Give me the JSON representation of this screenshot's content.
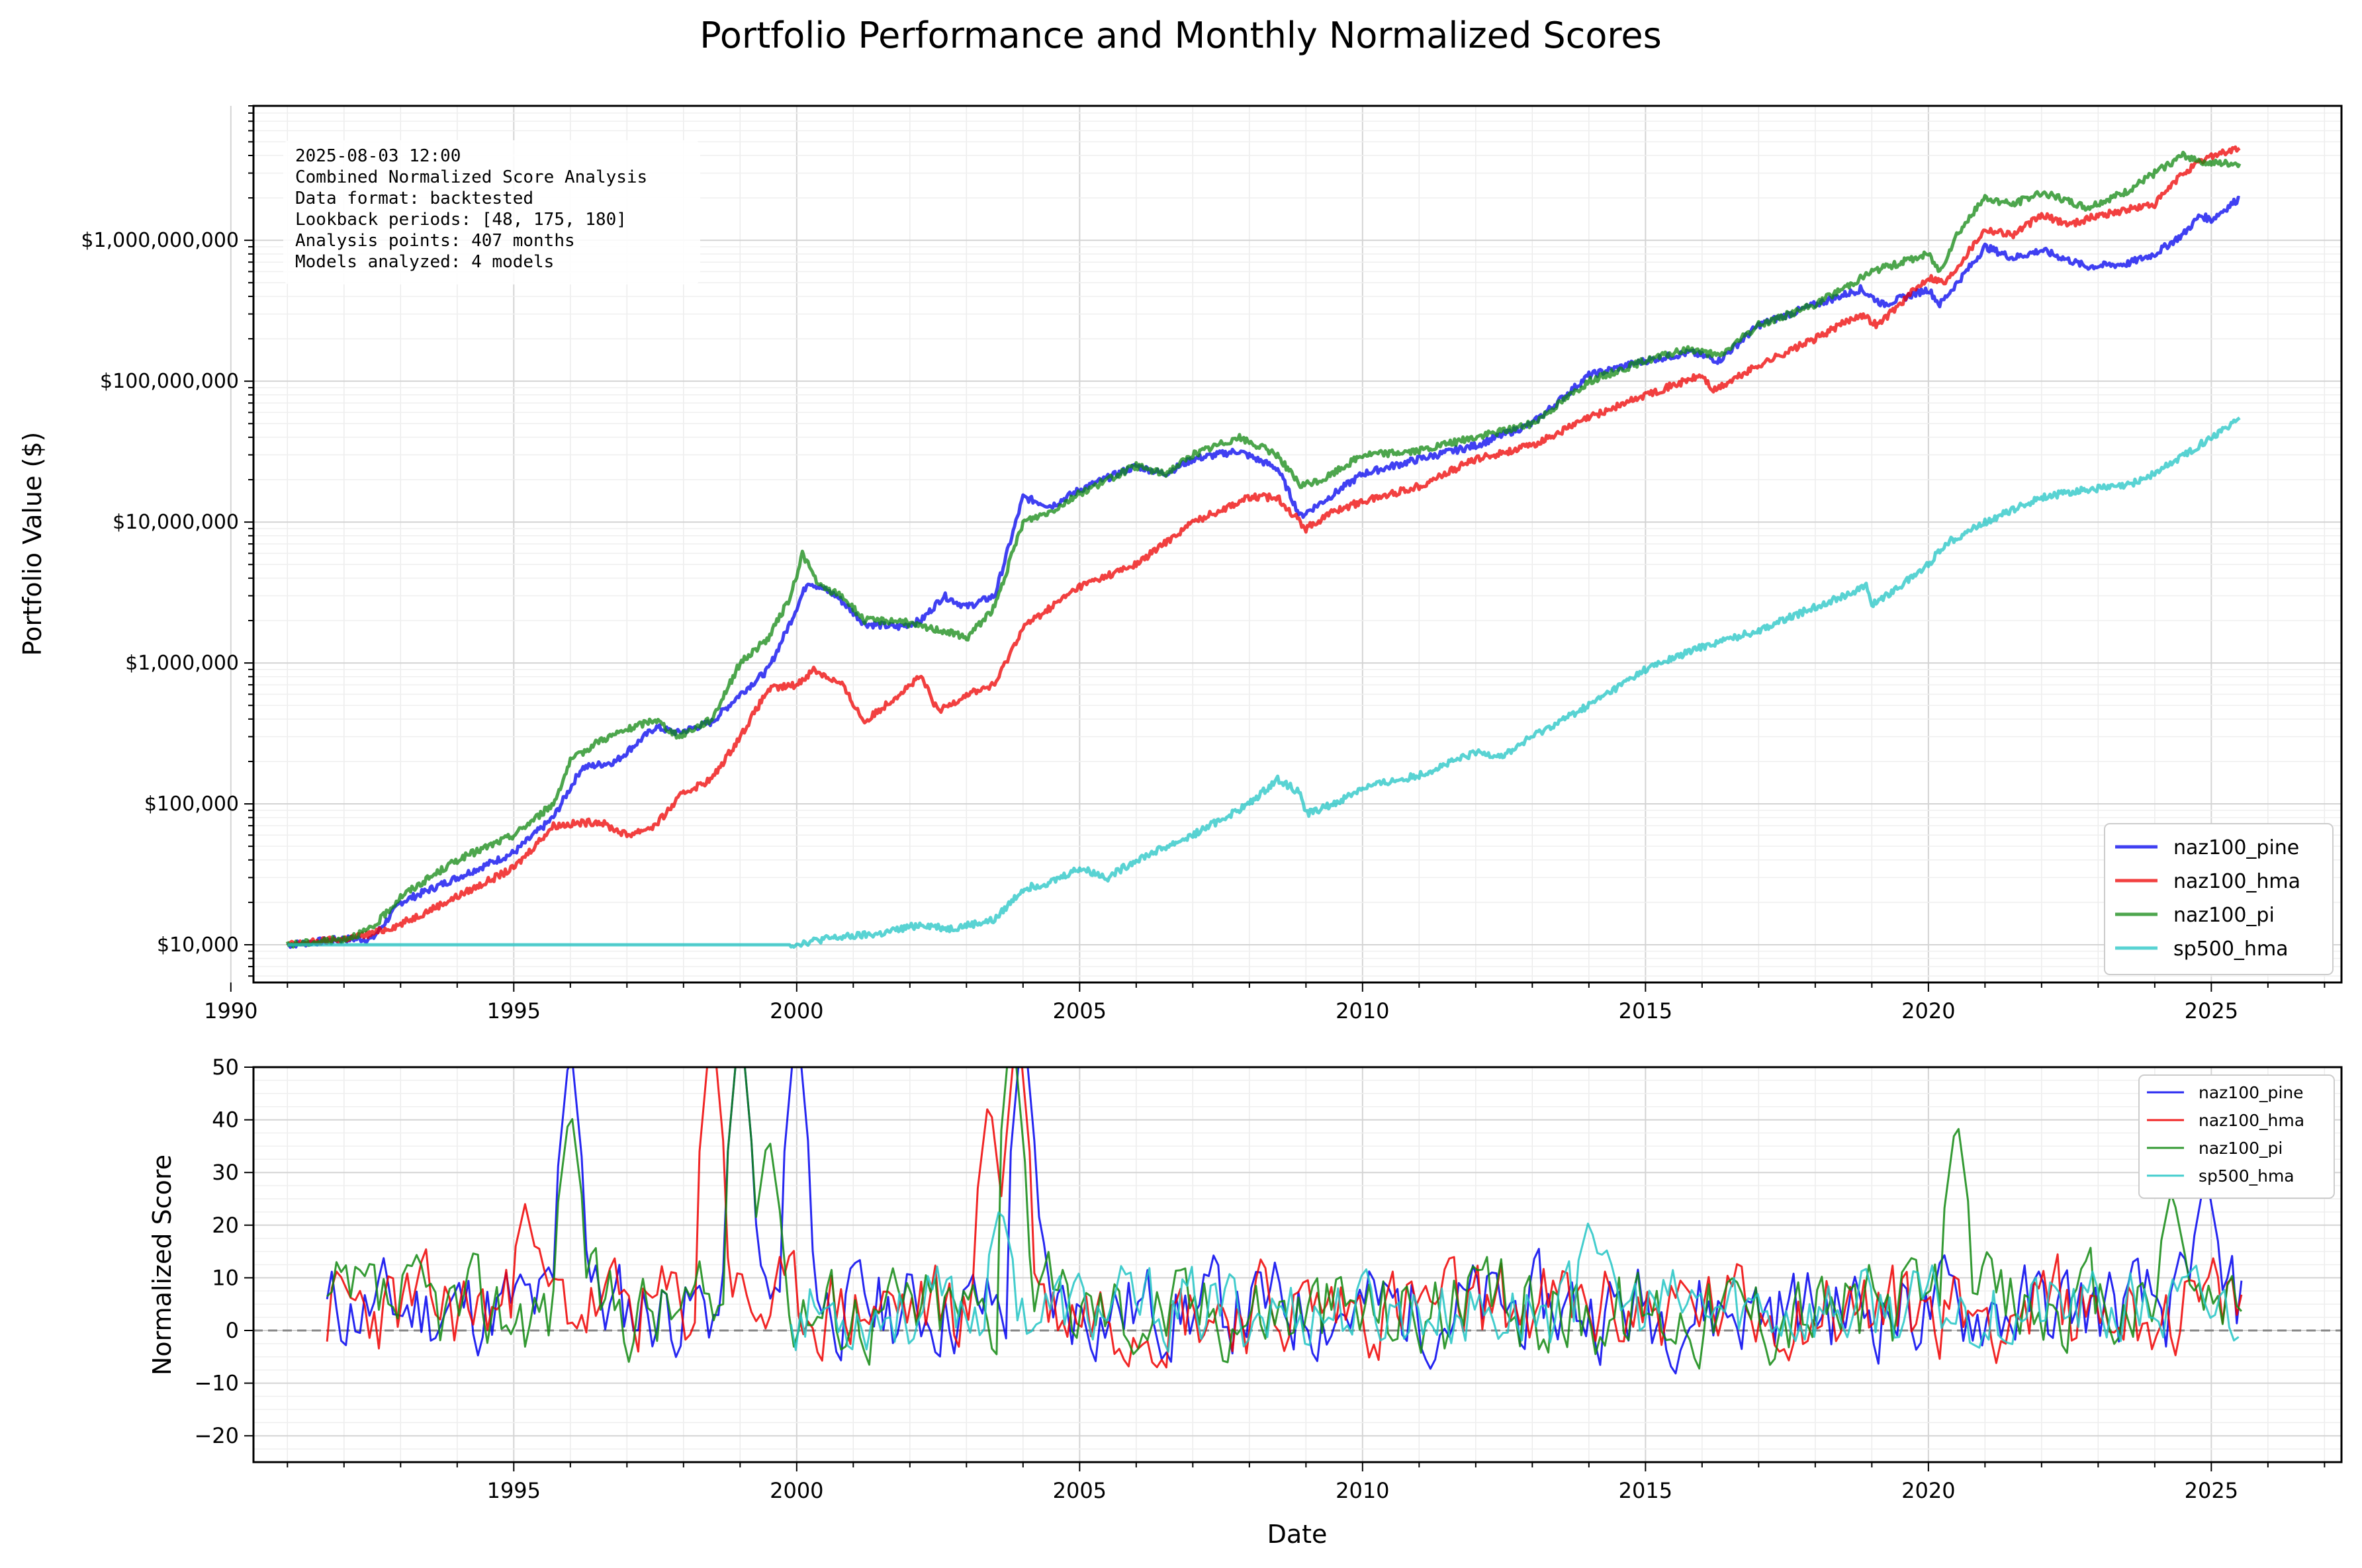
{
  "figure": {
    "title": "Portfolio Performance and Monthly Normalized Scores"
  },
  "info_box": {
    "lines": [
      "2025-08-03 12:00",
      "Combined Normalized Score Analysis",
      "Data format: backtested",
      "Lookback periods: [48, 175, 180]",
      "Analysis points: 407 months",
      "Models analyzed: 4 models"
    ]
  },
  "chart_data": [
    {
      "type": "line",
      "ylabel": "Portfolio Value ($)",
      "xlabel": "",
      "yscale": "log",
      "xlim": [
        1990.4,
        2027.3
      ],
      "ylim": [
        5400,
        9000000000
      ],
      "x_ticks": [
        1990,
        1995,
        2000,
        2005,
        2010,
        2015,
        2020,
        2025
      ],
      "y_ticks": [
        {
          "value": 10000,
          "label": "$10,000"
        },
        {
          "value": 100000,
          "label": "$100,000"
        },
        {
          "value": 1000000,
          "label": "$1,000,000"
        },
        {
          "value": 10000000,
          "label": "$10,000,000"
        },
        {
          "value": 100000000,
          "label": "$100,000,000"
        },
        {
          "value": 1000000000,
          "label": "$1,000,000,000"
        }
      ],
      "grid": true,
      "legend_position": "bottom-right",
      "series": [
        {
          "name": "naz100_pine",
          "color": "#0000ee",
          "points": [
            [
              1991.0,
              10000
            ],
            [
              1992.0,
              11000
            ],
            [
              1992.5,
              11000
            ],
            [
              1993.0,
              20000
            ],
            [
              1994.0,
              30000
            ],
            [
              1995.0,
              45000
            ],
            [
              1995.7,
              80000
            ],
            [
              1996.2,
              180000
            ],
            [
              1996.8,
              200000
            ],
            [
              1997.5,
              350000
            ],
            [
              1997.9,
              320000
            ],
            [
              1998.5,
              380000
            ],
            [
              1999.0,
              600000
            ],
            [
              1999.5,
              900000
            ],
            [
              1999.9,
              2000000
            ],
            [
              2000.2,
              3800000
            ],
            [
              2000.7,
              3000000
            ],
            [
              2001.2,
              1900000
            ],
            [
              2001.8,
              1800000
            ],
            [
              2002.2,
              2000000
            ],
            [
              2002.6,
              3000000
            ],
            [
              2003.0,
              2500000
            ],
            [
              2003.5,
              3000000
            ],
            [
              2004.0,
              15000000
            ],
            [
              2004.5,
              13000000
            ],
            [
              2005.0,
              17000000
            ],
            [
              2006.0,
              25000000
            ],
            [
              2006.5,
              22000000
            ],
            [
              2007.0,
              28000000
            ],
            [
              2007.8,
              32000000
            ],
            [
              2008.5,
              24000000
            ],
            [
              2008.9,
              11000000
            ],
            [
              2009.3,
              14000000
            ],
            [
              2010.0,
              22000000
            ],
            [
              2011.0,
              28000000
            ],
            [
              2012.0,
              35000000
            ],
            [
              2013.0,
              50000000
            ],
            [
              2014.0,
              110000000
            ],
            [
              2015.0,
              140000000
            ],
            [
              2015.8,
              160000000
            ],
            [
              2016.3,
              140000000
            ],
            [
              2017.0,
              250000000
            ],
            [
              2018.0,
              350000000
            ],
            [
              2018.8,
              450000000
            ],
            [
              2019.2,
              350000000
            ],
            [
              2020.0,
              450000000
            ],
            [
              2020.2,
              350000000
            ],
            [
              2020.8,
              700000000
            ],
            [
              2021.0,
              900000000
            ],
            [
              2021.5,
              750000000
            ],
            [
              2022.0,
              850000000
            ],
            [
              2022.8,
              650000000
            ],
            [
              2023.5,
              680000000
            ],
            [
              2024.0,
              800000000
            ],
            [
              2024.5,
              1100000000
            ],
            [
              2024.8,
              1500000000
            ],
            [
              2025.0,
              1400000000
            ],
            [
              2025.5,
              2000000000
            ]
          ]
        },
        {
          "name": "naz100_hma",
          "color": "#ee0000",
          "points": [
            [
              1991.0,
              10000
            ],
            [
              1992.0,
              11000
            ],
            [
              1992.5,
              12000
            ],
            [
              1993.0,
              14000
            ],
            [
              1994.0,
              22000
            ],
            [
              1995.0,
              35000
            ],
            [
              1995.7,
              70000
            ],
            [
              1996.5,
              75000
            ],
            [
              1997.0,
              60000
            ],
            [
              1997.5,
              70000
            ],
            [
              1998.0,
              120000
            ],
            [
              1998.5,
              150000
            ],
            [
              1999.0,
              300000
            ],
            [
              1999.5,
              650000
            ],
            [
              2000.0,
              700000
            ],
            [
              2000.3,
              900000
            ],
            [
              2000.8,
              700000
            ],
            [
              2001.2,
              380000
            ],
            [
              2001.8,
              600000
            ],
            [
              2002.2,
              800000
            ],
            [
              2002.5,
              450000
            ],
            [
              2003.0,
              600000
            ],
            [
              2003.5,
              700000
            ],
            [
              2004.0,
              1800000
            ],
            [
              2004.5,
              2500000
            ],
            [
              2005.0,
              3500000
            ],
            [
              2006.0,
              5000000
            ],
            [
              2007.0,
              10000000
            ],
            [
              2008.0,
              15000000
            ],
            [
              2008.5,
              15000000
            ],
            [
              2009.0,
              9000000
            ],
            [
              2009.5,
              12000000
            ],
            [
              2010.0,
              14000000
            ],
            [
              2011.0,
              18000000
            ],
            [
              2012.0,
              28000000
            ],
            [
              2013.0,
              35000000
            ],
            [
              2014.0,
              55000000
            ],
            [
              2015.0,
              80000000
            ],
            [
              2016.0,
              110000000
            ],
            [
              2016.2,
              85000000
            ],
            [
              2017.0,
              130000000
            ],
            [
              2018.0,
              200000000
            ],
            [
              2018.8,
              300000000
            ],
            [
              2019.1,
              250000000
            ],
            [
              2020.0,
              550000000
            ],
            [
              2020.3,
              500000000
            ],
            [
              2021.0,
              1200000000
            ],
            [
              2021.5,
              1100000000
            ],
            [
              2022.0,
              1500000000
            ],
            [
              2022.5,
              1300000000
            ],
            [
              2023.0,
              1500000000
            ],
            [
              2024.0,
              1800000000
            ],
            [
              2024.5,
              3000000000
            ],
            [
              2025.0,
              4000000000
            ],
            [
              2025.5,
              4500000000
            ]
          ]
        },
        {
          "name": "naz100_pi",
          "color": "#118811",
          "points": [
            [
              1991.0,
              10000
            ],
            [
              1992.0,
              11000
            ],
            [
              1992.5,
              13000
            ],
            [
              1993.0,
              22000
            ],
            [
              1994.0,
              40000
            ],
            [
              1995.0,
              60000
            ],
            [
              1995.7,
              100000
            ],
            [
              1996.0,
              200000
            ],
            [
              1996.5,
              280000
            ],
            [
              1997.5,
              400000
            ],
            [
              1997.9,
              300000
            ],
            [
              1998.5,
              400000
            ],
            [
              1999.0,
              1000000
            ],
            [
              1999.5,
              1500000
            ],
            [
              1999.9,
              3000000
            ],
            [
              2000.1,
              6000000
            ],
            [
              2000.4,
              3500000
            ],
            [
              2000.8,
              3000000
            ],
            [
              2001.2,
              2000000
            ],
            [
              2001.8,
              2000000
            ],
            [
              2002.2,
              1800000
            ],
            [
              2002.6,
              1700000
            ],
            [
              2003.0,
              1500000
            ],
            [
              2003.5,
              2500000
            ],
            [
              2004.0,
              10000000
            ],
            [
              2004.5,
              12000000
            ],
            [
              2005.0,
              16000000
            ],
            [
              2006.0,
              25000000
            ],
            [
              2006.5,
              22000000
            ],
            [
              2007.0,
              30000000
            ],
            [
              2007.8,
              40000000
            ],
            [
              2008.5,
              30000000
            ],
            [
              2008.9,
              18000000
            ],
            [
              2009.3,
              20000000
            ],
            [
              2010.0,
              30000000
            ],
            [
              2011.0,
              32000000
            ],
            [
              2012.0,
              40000000
            ],
            [
              2013.0,
              50000000
            ],
            [
              2014.0,
              100000000
            ],
            [
              2015.0,
              140000000
            ],
            [
              2015.8,
              170000000
            ],
            [
              2016.3,
              150000000
            ],
            [
              2017.0,
              250000000
            ],
            [
              2018.0,
              350000000
            ],
            [
              2019.0,
              600000000
            ],
            [
              2020.0,
              800000000
            ],
            [
              2020.2,
              600000000
            ],
            [
              2020.5,
              1100000000
            ],
            [
              2021.0,
              2000000000
            ],
            [
              2021.5,
              1800000000
            ],
            [
              2022.0,
              2200000000
            ],
            [
              2022.8,
              1700000000
            ],
            [
              2023.5,
              2200000000
            ],
            [
              2024.0,
              3000000000
            ],
            [
              2024.5,
              4000000000
            ],
            [
              2025.0,
              3500000000
            ],
            [
              2025.5,
              3500000000
            ]
          ]
        },
        {
          "name": "sp500_hma",
          "color": "#22c4c4",
          "points": [
            [
              1991.0,
              10000
            ],
            [
              1999.9,
              10000
            ],
            [
              2000.5,
              11000
            ],
            [
              2001.5,
              12000
            ],
            [
              2002.2,
              14000
            ],
            [
              2002.7,
              13000
            ],
            [
              2003.5,
              15000
            ],
            [
              2004.0,
              25000
            ],
            [
              2004.5,
              28000
            ],
            [
              2005.0,
              35000
            ],
            [
              2005.5,
              30000
            ],
            [
              2006.0,
              40000
            ],
            [
              2007.0,
              60000
            ],
            [
              2008.0,
              100000
            ],
            [
              2008.5,
              150000
            ],
            [
              2008.9,
              120000
            ],
            [
              2009.0,
              85000
            ],
            [
              2009.5,
              100000
            ],
            [
              2010.0,
              130000
            ],
            [
              2011.0,
              160000
            ],
            [
              2012.0,
              230000
            ],
            [
              2012.5,
              220000
            ],
            [
              2013.0,
              300000
            ],
            [
              2014.0,
              500000
            ],
            [
              2015.0,
              900000
            ],
            [
              2016.0,
              1300000
            ],
            [
              2017.0,
              1700000
            ],
            [
              2018.0,
              2500000
            ],
            [
              2018.9,
              3500000
            ],
            [
              2019.0,
              2600000
            ],
            [
              2019.5,
              3500000
            ],
            [
              2020.0,
              5000000
            ],
            [
              2020.3,
              7000000
            ],
            [
              2021.0,
              10000000
            ],
            [
              2022.0,
              15000000
            ],
            [
              2022.8,
              17000000
            ],
            [
              2023.5,
              18000000
            ],
            [
              2024.0,
              22000000
            ],
            [
              2025.0,
              40000000
            ],
            [
              2025.5,
              55000000
            ]
          ]
        }
      ]
    },
    {
      "type": "line",
      "ylabel": "Normalized Score",
      "xlabel": "Date",
      "xlim": [
        1990.4,
        2027.3
      ],
      "ylim": [
        -25,
        50
      ],
      "x_ticks": [
        1995,
        2000,
        2005,
        2010,
        2015,
        2020,
        2025
      ],
      "y_ticks": [
        -20,
        -10,
        0,
        10,
        20,
        30,
        40,
        50
      ],
      "zero_line": true,
      "grid": true,
      "legend_position": "top-right",
      "series": [
        {
          "name": "naz100_pine",
          "color": "#0000ee",
          "seed": 11,
          "amp": 7,
          "start": 1991.7,
          "spikes": [
            [
              1996.0,
              55
            ],
            [
              1999.0,
              60
            ],
            [
              2000.0,
              60
            ],
            [
              2004.0,
              60
            ],
            [
              2024.9,
              30
            ]
          ]
        },
        {
          "name": "naz100_hma",
          "color": "#ee0000",
          "seed": 23,
          "amp": 7,
          "start": 1991.7,
          "spikes": [
            [
              1995.2,
              24
            ],
            [
              1998.5,
              60
            ],
            [
              2003.4,
              45
            ],
            [
              2003.9,
              60
            ]
          ]
        },
        {
          "name": "naz100_pi",
          "color": "#118811",
          "seed": 37,
          "amp": 7,
          "start": 1991.7,
          "spikes": [
            [
              1996.0,
              43
            ],
            [
              1999.0,
              60
            ],
            [
              1999.5,
              38
            ],
            [
              2003.8,
              60
            ],
            [
              2020.5,
              41
            ],
            [
              2024.3,
              27
            ]
          ]
        },
        {
          "name": "sp500_hma",
          "color": "#22c4c4",
          "seed": 53,
          "amp": 6,
          "start": 1999.9,
          "spikes": [
            [
              2003.6,
              24
            ],
            [
              2014.0,
              21
            ]
          ]
        }
      ]
    }
  ]
}
